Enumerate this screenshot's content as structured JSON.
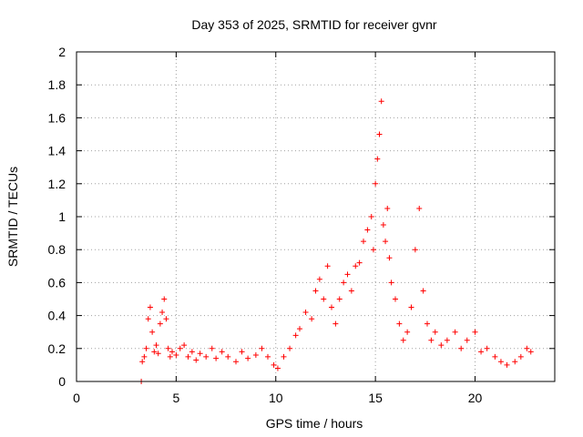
{
  "chart_data": {
    "type": "scatter",
    "title": "Day 353 of 2025, SRMTID for receiver gvnr",
    "xlabel": "GPS time / hours",
    "ylabel": "SRMTID / TECUs",
    "xlim": [
      0,
      24
    ],
    "ylim": [
      0,
      2
    ],
    "xticks": [
      0,
      5,
      10,
      15,
      20
    ],
    "xtick_labels": [
      "0",
      "5",
      "10",
      "15",
      "20"
    ],
    "yticks": [
      0,
      0.2,
      0.4,
      0.6,
      0.8,
      1,
      1.2,
      1.4,
      1.6,
      1.8,
      2
    ],
    "ytick_labels": [
      "0",
      "0.2",
      "0.4",
      "0.6",
      "0.8",
      "1",
      "1.2",
      "1.4",
      "1.6",
      "1.8",
      "2"
    ],
    "grid": true,
    "marker": "plus",
    "color": "#ff0000",
    "series": [
      {
        "name": "SRMTID",
        "x": [
          3.25,
          3.3,
          3.4,
          3.5,
          3.6,
          3.7,
          3.8,
          3.9,
          4.0,
          4.1,
          4.2,
          4.3,
          4.4,
          4.5,
          4.6,
          4.7,
          4.8,
          5.0,
          5.2,
          5.4,
          5.6,
          5.8,
          6.0,
          6.2,
          6.5,
          6.8,
          7.0,
          7.3,
          7.6,
          8.0,
          8.3,
          8.6,
          9.0,
          9.3,
          9.6,
          9.9,
          10.1,
          10.4,
          10.7,
          11.0,
          11.2,
          11.5,
          11.8,
          12.0,
          12.2,
          12.4,
          12.6,
          12.8,
          13.0,
          13.2,
          13.4,
          13.6,
          13.8,
          14.0,
          14.2,
          14.4,
          14.6,
          14.8,
          14.9,
          15.0,
          15.1,
          15.2,
          15.3,
          15.4,
          15.5,
          15.6,
          15.7,
          15.8,
          16.0,
          16.2,
          16.4,
          16.6,
          16.8,
          17.0,
          17.2,
          17.4,
          17.6,
          17.8,
          18.0,
          18.3,
          18.6,
          19.0,
          19.3,
          19.6,
          20.0,
          20.3,
          20.6,
          21.0,
          21.3,
          21.6,
          22.0,
          22.3,
          22.6,
          22.8
        ],
        "y": [
          0.0,
          0.12,
          0.15,
          0.2,
          0.38,
          0.45,
          0.3,
          0.18,
          0.22,
          0.17,
          0.35,
          0.42,
          0.5,
          0.38,
          0.2,
          0.15,
          0.18,
          0.16,
          0.2,
          0.22,
          0.15,
          0.18,
          0.13,
          0.17,
          0.15,
          0.2,
          0.14,
          0.18,
          0.15,
          0.12,
          0.18,
          0.14,
          0.16,
          0.2,
          0.15,
          0.1,
          0.08,
          0.15,
          0.2,
          0.28,
          0.32,
          0.42,
          0.38,
          0.55,
          0.62,
          0.5,
          0.7,
          0.45,
          0.35,
          0.5,
          0.6,
          0.65,
          0.55,
          0.7,
          0.72,
          0.85,
          0.92,
          1.0,
          0.8,
          1.2,
          1.35,
          1.5,
          1.7,
          0.95,
          0.85,
          1.05,
          0.75,
          0.6,
          0.5,
          0.35,
          0.25,
          0.3,
          0.45,
          0.8,
          1.05,
          0.55,
          0.35,
          0.25,
          0.3,
          0.22,
          0.25,
          0.3,
          0.2,
          0.25,
          0.3,
          0.18,
          0.2,
          0.15,
          0.12,
          0.1,
          0.12,
          0.15,
          0.2,
          0.18
        ]
      }
    ]
  }
}
